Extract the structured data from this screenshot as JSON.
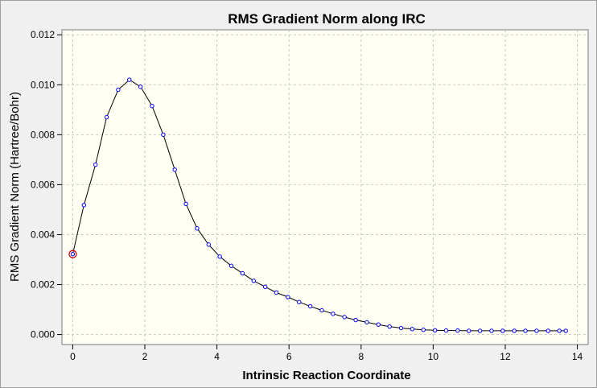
{
  "chart_data": {
    "type": "line",
    "title": "RMS Gradient Norm along IRC",
    "xlabel": "Intrinsic Reaction Coordinate",
    "ylabel": "RMS Gradient Norm (Hartree/Bohr)",
    "xlim": [
      -0.3,
      14.3
    ],
    "ylim": [
      -0.0004,
      0.0122
    ],
    "x_ticks": [
      0,
      2,
      4,
      6,
      8,
      10,
      12,
      14
    ],
    "y_ticks": [
      "0.000",
      "0.002",
      "0.004",
      "0.006",
      "0.008",
      "0.010",
      "0.012"
    ],
    "grid": true,
    "colors": {
      "plot_background": "#fffff4",
      "line": "#000000",
      "marker": "#0000ff",
      "highlight_marker": "#cc0000",
      "grid": "#c8c8c8"
    },
    "series": [
      {
        "x": [
          0,
          0.31,
          0.63,
          0.94,
          1.26,
          1.57,
          1.88,
          2.2,
          2.51,
          2.83,
          3.14,
          3.45,
          3.77,
          4.08,
          4.4,
          4.71,
          5.02,
          5.34,
          5.65,
          5.97,
          6.28,
          6.59,
          6.91,
          7.22,
          7.54,
          7.85,
          8.16,
          8.48,
          8.79,
          9.11,
          9.42,
          9.73,
          10.05,
          10.36,
          10.68,
          10.99,
          11.3,
          11.62,
          11.93,
          12.25,
          12.56,
          12.87,
          13.19,
          13.5,
          13.68
        ],
        "y": [
          0.00322,
          0.00518,
          0.0068,
          0.0087,
          0.0098,
          0.0102,
          0.00992,
          0.00915,
          0.008,
          0.0066,
          0.00523,
          0.00425,
          0.0036,
          0.00312,
          0.00275,
          0.00245,
          0.00215,
          0.00191,
          0.00168,
          0.0015,
          0.0013,
          0.00113,
          0.00097,
          0.00083,
          0.0007,
          0.00058,
          0.00049,
          0.0004,
          0.00032,
          0.00026,
          0.00022,
          0.00019,
          0.00017,
          0.00016,
          0.00016,
          0.00015,
          0.00015,
          0.00015,
          0.00015,
          0.00015,
          0.00015,
          0.00015,
          0.00015,
          0.00015,
          0.00015
        ],
        "highlight_index": 0
      }
    ]
  }
}
